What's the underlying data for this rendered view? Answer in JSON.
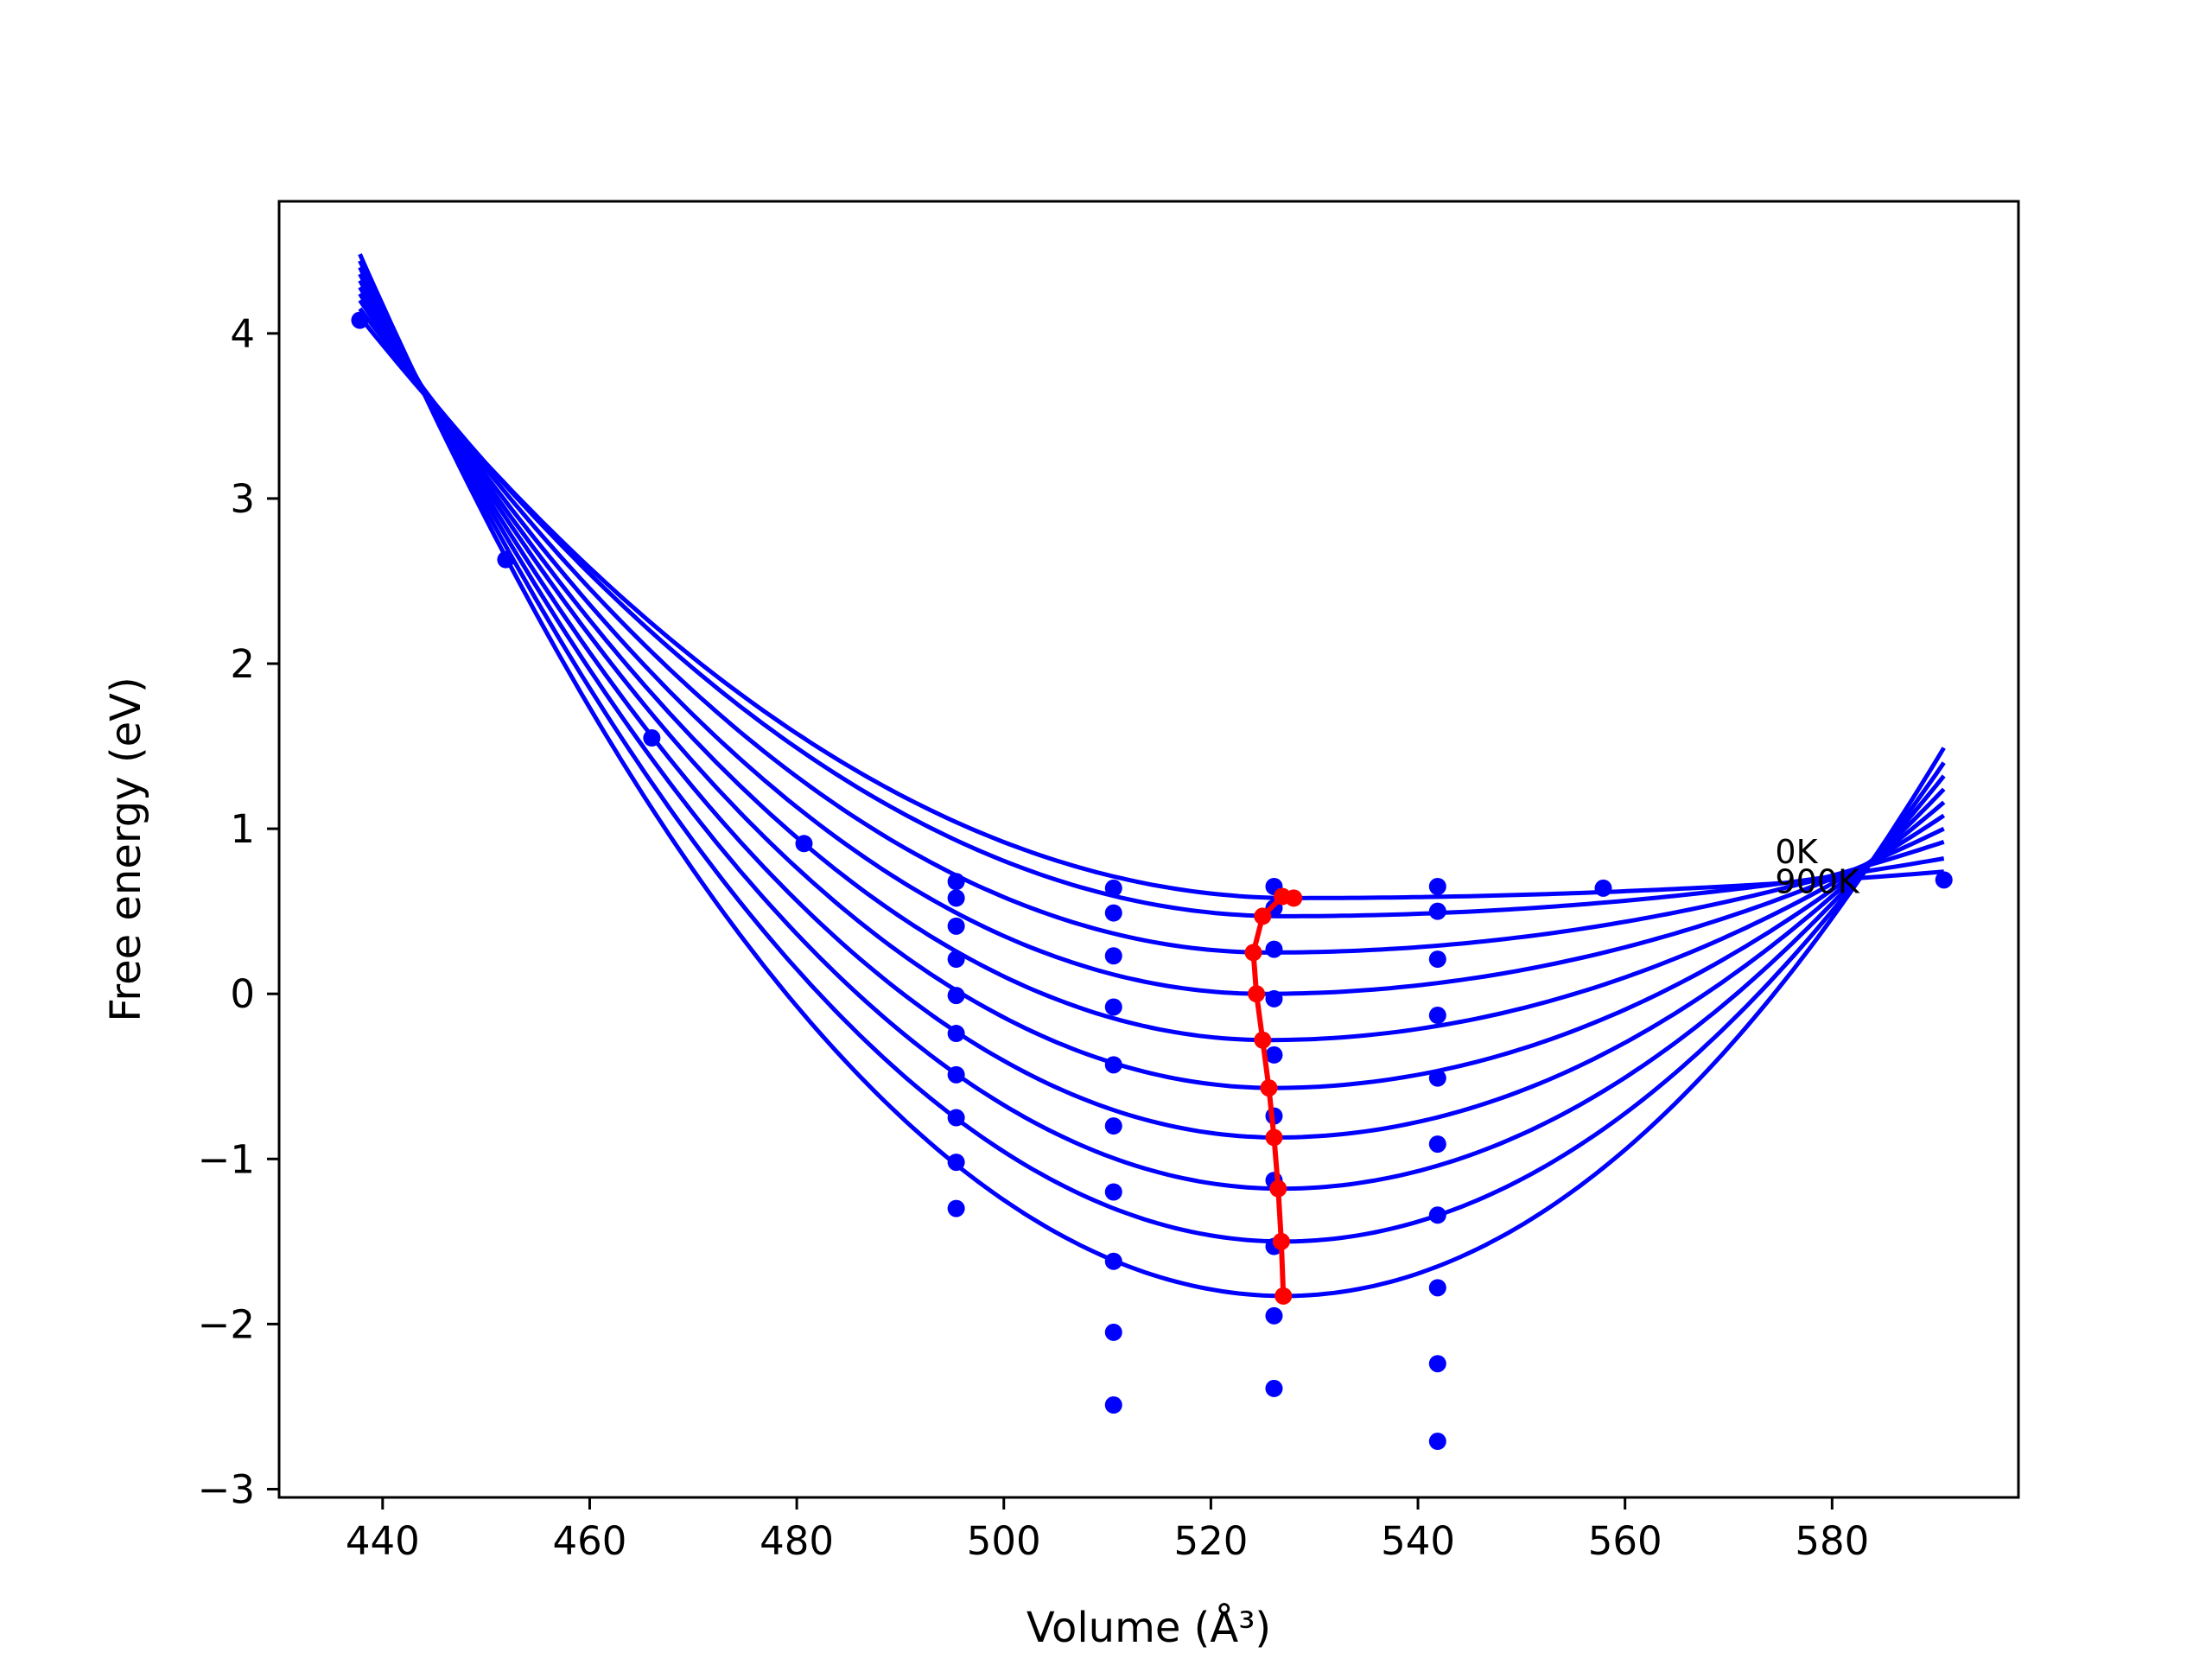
{
  "chart_data": {
    "type": "line",
    "xlabel": "Volume (Å³)",
    "ylabel": "Free energy (eV)",
    "xlim": [
      430,
      598
    ],
    "ylim": [
      -3.05,
      4.8
    ],
    "xticks": [
      440,
      460,
      480,
      500,
      520,
      540,
      560,
      580
    ],
    "yticks": [
      -3,
      -2,
      -1,
      0,
      1,
      2,
      3,
      4
    ],
    "grid": false,
    "curve_color": "#0000ff",
    "minimum_color": "#ff0000",
    "fit_curves": [
      {
        "min_volume": 528.0,
        "min_energy": 0.58,
        "left_end": 4.1,
        "right_end": 0.74
      },
      {
        "min_volume": 526.9,
        "min_energy": 0.47,
        "left_end": 4.15,
        "right_end": 0.82
      },
      {
        "min_volume": 525.6,
        "min_energy": 0.25,
        "left_end": 4.2,
        "right_end": 0.92
      },
      {
        "min_volume": 525.1,
        "min_energy": 0.0,
        "left_end": 4.24,
        "right_end": 1.0
      },
      {
        "min_volume": 525.5,
        "min_energy": -0.28,
        "left_end": 4.28,
        "right_end": 1.08
      },
      {
        "min_volume": 526.1,
        "min_energy": -0.57,
        "left_end": 4.32,
        "right_end": 1.16
      },
      {
        "min_volume": 526.4,
        "min_energy": -0.87,
        "left_end": 4.36,
        "right_end": 1.24
      },
      {
        "min_volume": 526.8,
        "min_energy": -1.18,
        "left_end": 4.4,
        "right_end": 1.32
      },
      {
        "min_volume": 527.0,
        "min_energy": -1.5,
        "left_end": 4.44,
        "right_end": 1.4
      },
      {
        "min_volume": 527.1,
        "min_energy": -1.83,
        "left_end": 4.48,
        "right_end": 1.49
      }
    ],
    "fit_x_range": [
      437.8,
      590.8
    ],
    "data_points": [
      {
        "x": 437.8,
        "y": 4.08
      },
      {
        "x": 451.9,
        "y": 2.63
      },
      {
        "x": 466.0,
        "y": 1.55
      },
      {
        "x": 480.7,
        "y": 0.91
      },
      {
        "x": 495.4,
        "y": 0.68
      },
      {
        "x": 495.4,
        "y": 0.58
      },
      {
        "x": 495.4,
        "y": 0.41
      },
      {
        "x": 495.4,
        "y": 0.21
      },
      {
        "x": 495.4,
        "y": -0.01
      },
      {
        "x": 495.4,
        "y": -0.24
      },
      {
        "x": 495.4,
        "y": -0.49
      },
      {
        "x": 495.4,
        "y": -0.75
      },
      {
        "x": 495.4,
        "y": -1.02
      },
      {
        "x": 495.4,
        "y": -1.3
      },
      {
        "x": 510.6,
        "y": 0.64
      },
      {
        "x": 510.6,
        "y": 0.49
      },
      {
        "x": 510.6,
        "y": 0.23
      },
      {
        "x": 510.6,
        "y": -0.08
      },
      {
        "x": 510.6,
        "y": -0.43
      },
      {
        "x": 510.6,
        "y": -0.8
      },
      {
        "x": 510.6,
        "y": -1.2
      },
      {
        "x": 510.6,
        "y": -1.62
      },
      {
        "x": 510.6,
        "y": -2.05
      },
      {
        "x": 510.6,
        "y": -2.49
      },
      {
        "x": 526.1,
        "y": 0.65
      },
      {
        "x": 526.1,
        "y": 0.52
      },
      {
        "x": 526.1,
        "y": 0.27
      },
      {
        "x": 526.1,
        "y": -0.03
      },
      {
        "x": 526.1,
        "y": -0.37
      },
      {
        "x": 526.1,
        "y": -0.74
      },
      {
        "x": 526.1,
        "y": -1.13
      },
      {
        "x": 526.1,
        "y": -1.53
      },
      {
        "x": 526.1,
        "y": -1.95
      },
      {
        "x": 526.1,
        "y": -2.39
      },
      {
        "x": 541.9,
        "y": 0.65
      },
      {
        "x": 541.9,
        "y": 0.5
      },
      {
        "x": 541.9,
        "y": 0.21
      },
      {
        "x": 541.9,
        "y": -0.13
      },
      {
        "x": 541.9,
        "y": -0.51
      },
      {
        "x": 541.9,
        "y": -0.91
      },
      {
        "x": 541.9,
        "y": -1.34
      },
      {
        "x": 541.9,
        "y": -1.78
      },
      {
        "x": 541.9,
        "y": -2.24
      },
      {
        "x": 541.9,
        "y": -2.71
      },
      {
        "x": 557.9,
        "y": 0.64
      },
      {
        "x": 590.8,
        "y": 0.69
      }
    ],
    "minimum_line": [
      {
        "x": 528.0,
        "y": 0.58
      },
      {
        "x": 526.9,
        "y": 0.59
      },
      {
        "x": 525.0,
        "y": 0.47
      },
      {
        "x": 524.1,
        "y": 0.25
      },
      {
        "x": 524.4,
        "y": 0.0
      },
      {
        "x": 525.0,
        "y": -0.28
      },
      {
        "x": 525.6,
        "y": -0.57
      },
      {
        "x": 526.1,
        "y": -0.87
      },
      {
        "x": 526.5,
        "y": -1.18
      },
      {
        "x": 526.8,
        "y": -1.5
      },
      {
        "x": 527.0,
        "y": -1.83
      }
    ],
    "labels": {
      "top": {
        "text": "0K",
        "x": 574.5,
        "y": 0.79
      },
      "bottom": {
        "text": "900K",
        "x": 574.5,
        "y": 0.61
      }
    }
  }
}
